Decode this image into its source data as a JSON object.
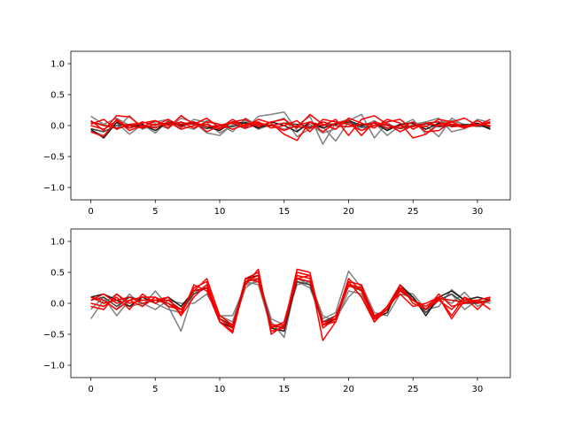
{
  "chart_data": [
    {
      "type": "line",
      "xlim": [
        -1.55,
        32.55
      ],
      "ylim": [
        -1.2,
        1.2
      ],
      "x_ticks": [
        0,
        5,
        10,
        15,
        20,
        25,
        30
      ],
      "y_ticks": [
        -1.0,
        -0.5,
        0.0,
        0.5,
        1.0
      ],
      "x_tick_labels": [
        "0",
        "5",
        "10",
        "15",
        "20",
        "25",
        "30"
      ],
      "y_tick_labels": [
        "−1.0",
        "−0.5",
        "0.0",
        "0.5",
        "1.0"
      ],
      "x": [
        0,
        1,
        2,
        3,
        4,
        5,
        6,
        7,
        8,
        9,
        10,
        11,
        12,
        13,
        14,
        15,
        16,
        17,
        18,
        19,
        20,
        21,
        22,
        23,
        24,
        25,
        26,
        27,
        28,
        29,
        30,
        31
      ],
      "series": [
        {
          "color": "#808080",
          "values": [
            0.15,
            0.02,
            -0.05,
            0.16,
            -0.06,
            0.03,
            -0.05,
            0.12,
            0.05,
            -0.12,
            -0.16,
            0.02,
            -0.05,
            0.15,
            0.18,
            0.22,
            -0.08,
            0.02,
            -0.12,
            -0.05,
            0.08,
            0.18,
            -0.2,
            0.05,
            -0.1,
            0.02,
            0.06,
            0.12,
            -0.1,
            -0.05,
            0.1,
            0.05
          ]
        },
        {
          "color": "#808080",
          "values": [
            -0.08,
            -0.16,
            0.05,
            -0.14,
            0.02,
            -0.12,
            0.08,
            -0.04,
            0.1,
            0.05,
            -0.12,
            0.0,
            0.08,
            -0.06,
            0.02,
            -0.06,
            0.0,
            0.15,
            -0.3,
            0.04,
            0.1,
            -0.08,
            0.05,
            -0.16,
            0.0,
            0.1,
            -0.14,
            0.05,
            0.08,
            0.02,
            -0.02,
            0.0
          ]
        },
        {
          "color": "#808080",
          "values": [
            0.05,
            0.02,
            0.12,
            0.0,
            -0.02,
            0.06,
            0.1,
            0.0,
            -0.06,
            0.08,
            0.02,
            -0.1,
            0.12,
            0.0,
            0.05,
            0.12,
            -0.18,
            -0.05,
            -0.02,
            -0.25,
            0.06,
            -0.02,
            0.08,
            -0.06,
            0.02,
            0.05,
            0.0,
            -0.18,
            0.12,
            0.0,
            0.02,
            -0.06
          ]
        },
        {
          "color": "#404040",
          "values": [
            -0.05,
            -0.1,
            0.0,
            0.02,
            0.0,
            -0.03,
            0.02,
            0.05,
            0.02,
            -0.05,
            0.0,
            -0.02,
            0.05,
            -0.03,
            0.0,
            0.04,
            0.02,
            -0.02,
            0.0,
            0.03,
            0.05,
            -0.03,
            0.0,
            0.02,
            -0.05,
            0.0,
            0.03,
            -0.02,
            0.0,
            0.02,
            0.0,
            -0.03
          ]
        },
        {
          "color": "#1a1a1a",
          "values": [
            -0.06,
            -0.2,
            0.05,
            -0.04,
            0.02,
            -0.08,
            0.06,
            0.0,
            0.04,
            -0.02,
            -0.08,
            0.06,
            0.04,
            -0.04,
            0.06,
            0.0,
            -0.1,
            0.06,
            -0.04,
            0.02,
            0.08,
            0.0,
            0.04,
            -0.08,
            0.02,
            0.04,
            -0.06,
            0.04,
            0.02,
            0.0,
            0.04,
            -0.06
          ]
        },
        {
          "color": "#ff0000",
          "values": [
            0.08,
            -0.08,
            0.16,
            0.14,
            -0.02,
            0.08,
            -0.04,
            0.16,
            0.02,
            0.12,
            -0.04,
            0.1,
            -0.02,
            0.1,
            0.04,
            -0.14,
            -0.24,
            0.06,
            0.0,
            0.1,
            -0.16,
            0.1,
            0.16,
            0.02,
            -0.1,
            0.0,
            -0.02,
            0.1,
            0.06,
            0.12,
            0.0,
            0.06
          ]
        },
        {
          "color": "#ff0000",
          "values": [
            -0.1,
            -0.18,
            0.1,
            -0.04,
            0.06,
            0.0,
            0.1,
            -0.02,
            0.06,
            -0.1,
            0.0,
            0.06,
            0.1,
            -0.02,
            0.06,
            0.1,
            -0.04,
            0.18,
            0.02,
            -0.06,
            0.12,
            0.04,
            -0.04,
            0.1,
            0.04,
            -0.2,
            -0.14,
            0.02,
            0.06,
            -0.04,
            0.02,
            0.0
          ]
        },
        {
          "color": "#ff0000",
          "values": [
            0.02,
            0.1,
            -0.06,
            0.02,
            0.04,
            0.08,
            0.0,
            0.06,
            -0.04,
            0.06,
            0.02,
            -0.06,
            0.02,
            0.06,
            -0.04,
            0.0,
            0.08,
            -0.1,
            0.1,
            0.06,
            0.02,
            -0.08,
            0.0,
            0.06,
            0.1,
            -0.06,
            0.04,
            0.0,
            0.02,
            -0.04,
            0.08,
            -0.02
          ]
        },
        {
          "color": "#ff0000",
          "values": [
            0.0,
            -0.06,
            0.08,
            -0.08,
            0.0,
            -0.04,
            0.06,
            -0.06,
            0.0,
            0.02,
            -0.06,
            0.06,
            0.0,
            0.04,
            0.0,
            -0.08,
            0.0,
            0.06,
            -0.1,
            0.04,
            0.08,
            -0.16,
            0.06,
            0.0,
            -0.04,
            0.06,
            -0.1,
            -0.08,
            0.06,
            -0.02,
            0.0,
            0.1
          ]
        },
        {
          "color": "#e00000",
          "values": [
            0.06,
            0.0,
            -0.04,
            0.0,
            -0.04,
            0.02,
            0.04,
            0.02,
            0.06,
            -0.02,
            0.0,
            0.04,
            -0.04,
            0.02,
            0.0,
            0.04,
            -0.02,
            -0.04,
            0.06,
            0.0,
            -0.02,
            0.02,
            0.04,
            -0.04,
            0.0,
            -0.02,
            0.04,
            0.06,
            -0.02,
            0.0,
            0.02,
            0.04
          ]
        }
      ]
    },
    {
      "type": "line",
      "xlim": [
        -1.55,
        32.55
      ],
      "ylim": [
        -1.2,
        1.2
      ],
      "x_ticks": [
        0,
        5,
        10,
        15,
        20,
        25,
        30
      ],
      "y_ticks": [
        -1.0,
        -0.5,
        0.0,
        0.5,
        1.0
      ],
      "x_tick_labels": [
        "0",
        "5",
        "10",
        "15",
        "20",
        "25",
        "30"
      ],
      "y_tick_labels": [
        "−1.0",
        "−0.5",
        "0.0",
        "0.5",
        "1.0"
      ],
      "x": [
        0,
        1,
        2,
        3,
        4,
        5,
        6,
        7,
        8,
        9,
        10,
        11,
        12,
        13,
        14,
        15,
        16,
        17,
        18,
        19,
        20,
        21,
        22,
        23,
        24,
        25,
        26,
        27,
        28,
        29,
        30,
        31
      ],
      "series": [
        {
          "color": "#808080",
          "values": [
            -0.25,
            0.05,
            -0.1,
            0.15,
            -0.05,
            0.2,
            -0.05,
            -0.45,
            0.2,
            0.25,
            -0.2,
            -0.2,
            0.3,
            0.35,
            -0.3,
            -0.55,
            0.4,
            0.3,
            -0.25,
            -0.15,
            0.52,
            0.25,
            -0.25,
            -0.1,
            0.2,
            0.15,
            -0.1,
            -0.05,
            0.22,
            0.05,
            0.0,
            0.08
          ]
        },
        {
          "color": "#808080",
          "values": [
            -0.1,
            0.1,
            -0.2,
            0.05,
            0.1,
            0.0,
            -0.1,
            -0.15,
            0.15,
            0.3,
            -0.25,
            -0.38,
            0.25,
            0.4,
            -0.25,
            -0.35,
            0.3,
            0.35,
            -0.2,
            -0.3,
            0.2,
            0.15,
            -0.3,
            -0.05,
            0.25,
            0.05,
            -0.1,
            0.1,
            0.0,
            0.18,
            -0.05,
            0.05
          ]
        },
        {
          "color": "#808080",
          "values": [
            0.1,
            0.0,
            0.15,
            -0.05,
            0.0,
            -0.1,
            0.05,
            0.0,
            0.0,
            0.15,
            -0.2,
            -0.3,
            0.35,
            0.3,
            -0.4,
            -0.3,
            0.35,
            0.25,
            -0.3,
            -0.25,
            0.1,
            0.3,
            -0.15,
            -0.2,
            0.15,
            0.1,
            -0.15,
            0.05,
            0.15,
            -0.1,
            0.05,
            0.0
          ]
        },
        {
          "color": "#404040",
          "values": [
            0.05,
            0.1,
            -0.05,
            0.1,
            0.05,
            0.05,
            0.0,
            -0.1,
            0.15,
            0.25,
            -0.25,
            -0.35,
            0.35,
            0.4,
            -0.35,
            -0.4,
            0.35,
            0.3,
            -0.3,
            -0.2,
            0.3,
            0.2,
            -0.2,
            -0.1,
            0.25,
            0.1,
            -0.15,
            0.05,
            0.15,
            0.0,
            0.0,
            0.05
          ]
        },
        {
          "color": "#1a1a1a",
          "values": [
            0.1,
            0.15,
            0.05,
            -0.05,
            0.1,
            0.0,
            0.1,
            -0.05,
            0.2,
            0.25,
            -0.3,
            -0.4,
            0.4,
            0.45,
            -0.4,
            -0.45,
            0.4,
            0.35,
            -0.35,
            -0.25,
            0.3,
            0.25,
            -0.25,
            -0.15,
            0.3,
            0.1,
            -0.2,
            0.1,
            0.2,
            0.05,
            0.1,
            0.05
          ]
        },
        {
          "color": "#ff0000",
          "values": [
            0.0,
            -0.05,
            0.1,
            -0.1,
            0.15,
            0.0,
            0.1,
            -0.2,
            0.3,
            0.2,
            -0.3,
            -0.45,
            0.4,
            0.5,
            -0.45,
            -0.4,
            0.5,
            0.45,
            -0.6,
            -0.3,
            0.35,
            0.3,
            -0.25,
            -0.05,
            0.3,
            0.0,
            -0.1,
            0.05,
            -0.1,
            0.1,
            -0.1,
            0.1
          ]
        },
        {
          "color": "#ff0000",
          "values": [
            0.1,
            0.05,
            -0.1,
            0.05,
            0.1,
            0.1,
            -0.05,
            -0.1,
            0.2,
            0.4,
            -0.2,
            -0.35,
            0.3,
            0.55,
            -0.5,
            -0.35,
            0.55,
            0.5,
            -0.4,
            -0.25,
            0.4,
            0.2,
            -0.3,
            -0.1,
            0.25,
            0.05,
            -0.05,
            0.1,
            -0.2,
            0.1,
            0.0,
            0.05
          ]
        },
        {
          "color": "#ff0000",
          "values": [
            0.05,
            0.15,
            0.0,
            0.05,
            -0.05,
            0.1,
            0.0,
            -0.15,
            0.25,
            0.35,
            -0.3,
            -0.48,
            0.35,
            0.45,
            -0.4,
            -0.3,
            0.45,
            0.4,
            -0.35,
            -0.2,
            0.3,
            0.25,
            -0.2,
            -0.1,
            0.2,
            0.05,
            -0.1,
            0.15,
            -0.05,
            0.0,
            0.05,
            0.1
          ]
        },
        {
          "color": "#ff0000",
          "values": [
            -0.05,
            -0.1,
            0.15,
            0.0,
            0.05,
            0.05,
            0.1,
            -0.2,
            0.1,
            0.3,
            -0.25,
            -0.4,
            0.4,
            0.35,
            -0.35,
            -0.35,
            0.4,
            0.45,
            -0.35,
            -0.3,
            0.35,
            0.1,
            -0.3,
            -0.05,
            0.15,
            -0.05,
            0.0,
            0.1,
            -0.25,
            0.05,
            0.05,
            -0.1
          ]
        },
        {
          "color": "#e00000",
          "values": [
            0.1,
            0.0,
            0.05,
            0.1,
            0.0,
            0.05,
            0.05,
            -0.1,
            0.2,
            0.25,
            -0.25,
            -0.38,
            0.35,
            0.4,
            -0.38,
            -0.38,
            0.4,
            0.35,
            -0.3,
            -0.25,
            0.28,
            0.22,
            -0.22,
            -0.1,
            0.22,
            0.06,
            -0.1,
            0.08,
            0.05,
            0.02,
            0.02,
            0.04
          ]
        }
      ]
    }
  ]
}
